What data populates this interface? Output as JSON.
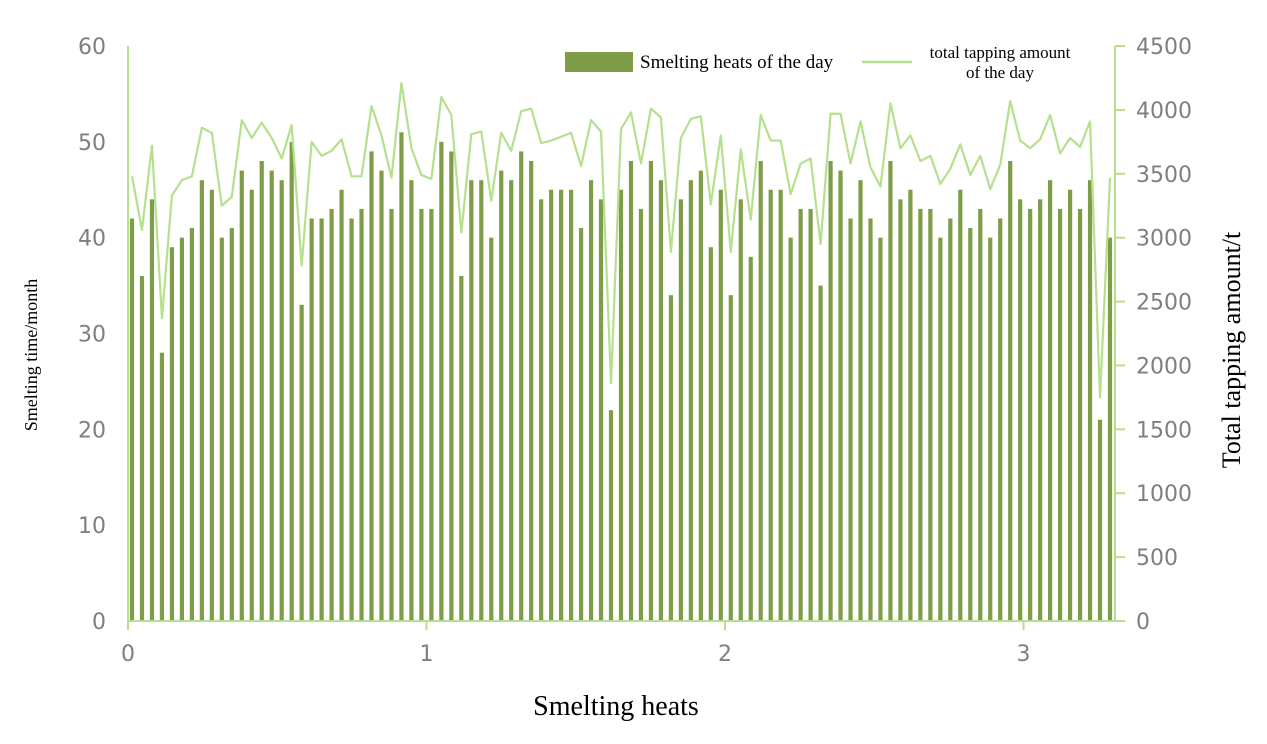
{
  "chart_data": {
    "type": "bar+line",
    "title": "",
    "xlabel": "Smelting heats",
    "ylabel_left": "Smelting time/month",
    "ylabel_right": "Total tapping amount/t",
    "x_ticks": [
      "0",
      "1",
      "2",
      "3"
    ],
    "xlim": [
      0,
      3.3
    ],
    "y_left_ticks": [
      "0",
      "10",
      "20",
      "30",
      "40",
      "50",
      "60"
    ],
    "y_left_range": [
      0,
      60
    ],
    "y_right_ticks": [
      "0",
      "500",
      "1000",
      "1500",
      "2000",
      "2500",
      "3000",
      "3500",
      "4000",
      "4500"
    ],
    "y_right_range": [
      0,
      4500
    ],
    "grid": false,
    "legend_position": "top-right",
    "colors": {
      "bar": "#7d9d49",
      "line": "#b5e08d",
      "axis": "#b5e08d",
      "tick_text": "#7f7f7f"
    },
    "series": [
      {
        "name": "Smelting heats of the day",
        "kind": "bar",
        "axis": "left",
        "values": [
          42,
          36,
          44,
          28,
          39,
          40,
          41,
          46,
          45,
          40,
          41,
          47,
          45,
          48,
          47,
          46,
          50,
          33,
          42,
          42,
          43,
          45,
          42,
          43,
          49,
          47,
          43,
          51,
          46,
          43,
          43,
          50,
          49,
          36,
          46,
          46,
          40,
          47,
          46,
          49,
          48,
          44,
          45,
          45,
          45,
          41,
          46,
          44,
          22,
          45,
          48,
          43,
          48,
          46,
          34,
          44,
          46,
          47,
          39,
          45,
          34,
          44,
          38,
          48,
          45,
          45,
          40,
          43,
          43,
          35,
          48,
          47,
          42,
          46,
          42,
          40,
          48,
          44,
          45,
          43,
          43,
          40,
          42,
          45,
          41,
          43,
          40,
          42,
          48,
          44,
          43,
          44,
          46,
          43,
          45,
          43,
          46,
          21,
          40
        ]
      },
      {
        "name": "total tapping amount of the day",
        "legend_lines": [
          "total tapping amount",
          "of the day"
        ],
        "kind": "line",
        "axis": "right",
        "values": [
          3480,
          3060,
          3720,
          2370,
          3330,
          3450,
          3480,
          3860,
          3820,
          3250,
          3320,
          3920,
          3780,
          3900,
          3780,
          3620,
          3880,
          2780,
          3750,
          3640,
          3680,
          3770,
          3480,
          3480,
          4030,
          3800,
          3470,
          4210,
          3700,
          3490,
          3460,
          4100,
          3960,
          3040,
          3810,
          3830,
          3290,
          3820,
          3680,
          3990,
          4010,
          3740,
          3760,
          3790,
          3820,
          3560,
          3920,
          3830,
          1860,
          3850,
          3980,
          3580,
          4010,
          3940,
          2890,
          3780,
          3930,
          3950,
          3260,
          3800,
          2890,
          3690,
          3140,
          3960,
          3760,
          3760,
          3340,
          3580,
          3620,
          2950,
          3970,
          3970,
          3580,
          3910,
          3550,
          3400,
          4050,
          3700,
          3800,
          3600,
          3640,
          3420,
          3540,
          3730,
          3490,
          3640,
          3380,
          3570,
          4070,
          3760,
          3700,
          3770,
          3960,
          3660,
          3780,
          3710,
          3910,
          1750,
          3470
        ]
      }
    ]
  }
}
